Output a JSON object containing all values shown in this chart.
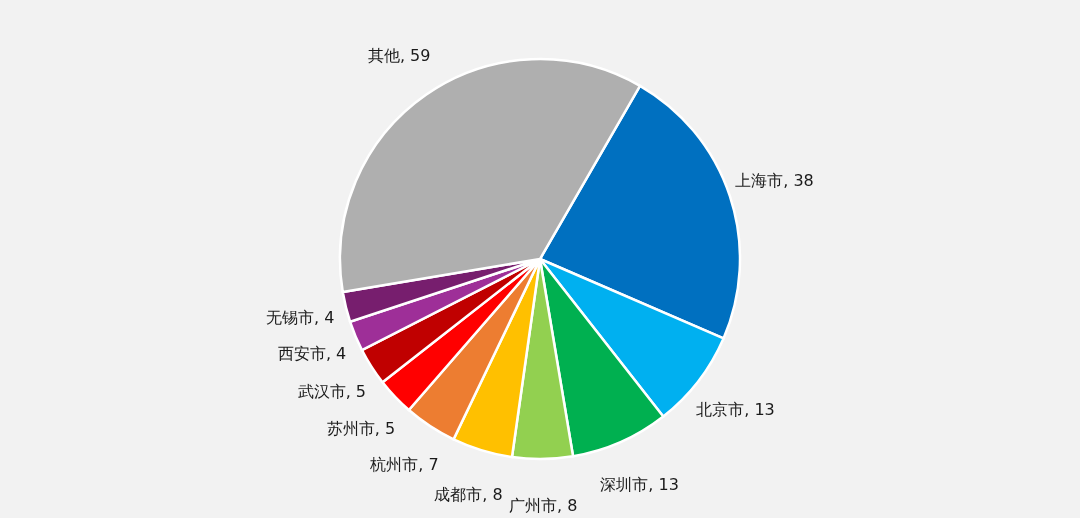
{
  "chart_data": {
    "type": "pie",
    "categories": [
      "上海市",
      "北京市",
      "深圳市",
      "广州市",
      "成都市",
      "杭州市",
      "苏州市",
      "武汉市",
      "西安市",
      "无锡市",
      "其他"
    ],
    "values": [
      38,
      13,
      13,
      8,
      8,
      7,
      5,
      5,
      4,
      4,
      59
    ],
    "value_labels": [
      ", 38",
      ", 13",
      ", 13",
      ", 8",
      ", 8",
      ", 7",
      ", 5",
      ", 5",
      ", 4",
      ", 4",
      ", 59"
    ],
    "colors": [
      "#0070c0",
      "#00b0f0",
      "#00b050",
      "#92d050",
      "#ffc000",
      "#ed7d31",
      "#ff0000",
      "#c00000",
      "#9e2f98",
      "#771e6e",
      "#afafaf"
    ],
    "legend": false
  }
}
